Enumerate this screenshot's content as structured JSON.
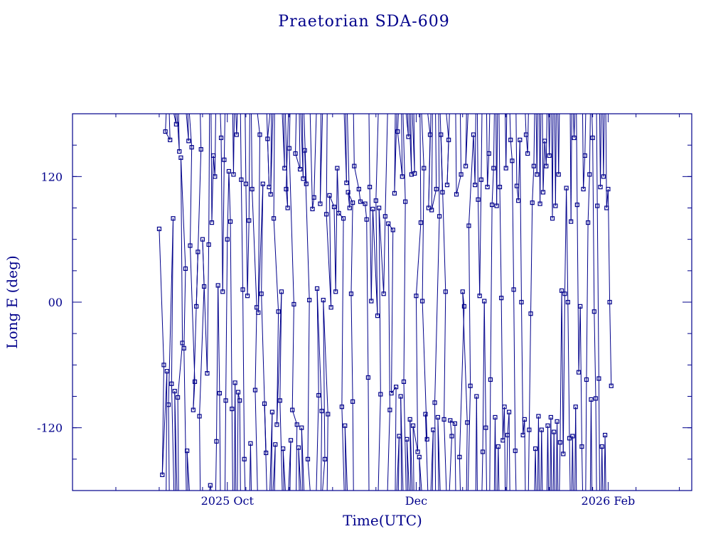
{
  "chart_data": {
    "type": "scatter",
    "title": "Praetorian SDA-609",
    "xlabel": "Time(UTC)",
    "ylabel": "Long E (deg)",
    "x_tick_labels": [
      "2025 Oct",
      "Dec",
      "2026 Feb"
    ],
    "x_ticks": [
      "2025-10-01",
      "2025-12-01",
      "2026-02-01"
    ],
    "xlim": [
      "2025-08-12",
      "2026-02-28"
    ],
    "y_tick_labels": [
      "120",
      "00",
      "-120"
    ],
    "y_ticks": [
      120,
      0,
      -120
    ],
    "ylim": [
      -180,
      180
    ],
    "grid": false,
    "line_color": "#00008b",
    "series": [
      {
        "points": [
          [
            "2025-09-09",
            70
          ],
          [
            "2025-09-10",
            -60
          ],
          [
            "2025-09-10",
            -165
          ],
          [
            "2025-09-11",
            -66
          ],
          [
            "2025-09-11",
            163
          ],
          [
            "2025-09-12",
            155
          ],
          [
            "2025-09-12",
            -98
          ],
          [
            "2025-09-13",
            80
          ],
          [
            "2025-09-13",
            -78
          ],
          [
            "2025-09-14",
            170
          ],
          [
            "2025-09-14",
            -85
          ],
          [
            "2025-09-15",
            144
          ],
          [
            "2025-09-15",
            -91
          ],
          [
            "2025-09-16",
            -39
          ],
          [
            "2025-09-16",
            138
          ],
          [
            "2025-09-17",
            32
          ],
          [
            "2025-09-17",
            -44
          ],
          [
            "2025-09-18",
            154
          ],
          [
            "2025-09-18",
            -142
          ],
          [
            "2025-09-19",
            148
          ],
          [
            "2025-09-19",
            54
          ],
          [
            "2025-09-20",
            -76
          ],
          [
            "2025-09-20",
            -103
          ],
          [
            "2025-09-21",
            48
          ],
          [
            "2025-09-21",
            -4
          ],
          [
            "2025-09-22",
            146
          ],
          [
            "2025-09-22",
            -109
          ],
          [
            "2025-09-23",
            15
          ],
          [
            "2025-09-23",
            60
          ],
          [
            "2025-09-24",
            -68
          ],
          [
            "2025-09-25",
            55
          ],
          [
            "2025-09-25",
            -175
          ],
          [
            "2025-09-26",
            76
          ],
          [
            "2025-09-26",
            140
          ],
          [
            "2025-09-27",
            120
          ],
          [
            "2025-09-27",
            -133
          ],
          [
            "2025-09-28",
            16
          ],
          [
            "2025-09-28",
            -87
          ],
          [
            "2025-09-29",
            157
          ],
          [
            "2025-09-29",
            10
          ],
          [
            "2025-09-30",
            136
          ],
          [
            "2025-09-30",
            -94
          ],
          [
            "2025-10-01",
            60
          ],
          [
            "2025-10-01",
            125
          ],
          [
            "2025-10-02",
            77
          ],
          [
            "2025-10-02",
            -102
          ],
          [
            "2025-10-03",
            122
          ],
          [
            "2025-10-03",
            -77
          ],
          [
            "2025-10-04",
            160
          ],
          [
            "2025-10-04",
            -86
          ],
          [
            "2025-10-05",
            -94
          ],
          [
            "2025-10-05",
            117
          ],
          [
            "2025-10-06",
            12
          ],
          [
            "2025-10-06",
            -150
          ],
          [
            "2025-10-07",
            113
          ],
          [
            "2025-10-07",
            6
          ],
          [
            "2025-10-08",
            78
          ],
          [
            "2025-10-08",
            -135
          ],
          [
            "2025-10-09",
            108
          ],
          [
            "2025-10-10",
            -5
          ],
          [
            "2025-10-10",
            -84
          ],
          [
            "2025-10-11",
            160
          ],
          [
            "2025-10-11",
            -10
          ],
          [
            "2025-10-12",
            113
          ],
          [
            "2025-10-12",
            8
          ],
          [
            "2025-10-13",
            -144
          ],
          [
            "2025-10-13",
            -97
          ],
          [
            "2025-10-14",
            110
          ],
          [
            "2025-10-14",
            156
          ],
          [
            "2025-10-15",
            -105
          ],
          [
            "2025-10-15",
            103
          ],
          [
            "2025-10-16",
            -136
          ],
          [
            "2025-10-16",
            80
          ],
          [
            "2025-10-17",
            -9
          ],
          [
            "2025-10-17",
            -117
          ],
          [
            "2025-10-18",
            10
          ],
          [
            "2025-10-18",
            -94
          ],
          [
            "2025-10-19",
            128
          ],
          [
            "2025-10-19",
            -140
          ],
          [
            "2025-10-20",
            90
          ],
          [
            "2025-10-20",
            108
          ],
          [
            "2025-10-21",
            -132
          ],
          [
            "2025-10-21",
            147
          ],
          [
            "2025-10-22",
            -2
          ],
          [
            "2025-10-22",
            -103
          ],
          [
            "2025-10-23",
            -117
          ],
          [
            "2025-10-23",
            142
          ],
          [
            "2025-10-24",
            127
          ],
          [
            "2025-10-24",
            -139
          ],
          [
            "2025-10-25",
            118
          ],
          [
            "2025-10-25",
            -120
          ],
          [
            "2025-10-26",
            113
          ],
          [
            "2025-10-26",
            145
          ],
          [
            "2025-10-27",
            2
          ],
          [
            "2025-10-27",
            -150
          ],
          [
            "2025-10-28",
            89
          ],
          [
            "2025-10-29",
            100
          ],
          [
            "2025-10-30",
            -89
          ],
          [
            "2025-10-30",
            13
          ],
          [
            "2025-10-31",
            -104
          ],
          [
            "2025-10-31",
            94
          ],
          [
            "2025-11-01",
            -150
          ],
          [
            "2025-11-01",
            2
          ],
          [
            "2025-11-02",
            -107
          ],
          [
            "2025-11-02",
            84
          ],
          [
            "2025-11-03",
            -5
          ],
          [
            "2025-11-03",
            102
          ],
          [
            "2025-11-04",
            91
          ],
          [
            "2025-11-05",
            10
          ],
          [
            "2025-11-05",
            128
          ],
          [
            "2025-11-06",
            85
          ],
          [
            "2025-11-07",
            80
          ],
          [
            "2025-11-07",
            -100
          ],
          [
            "2025-11-08",
            114
          ],
          [
            "2025-11-08",
            -118
          ],
          [
            "2025-11-09",
            90
          ],
          [
            "2025-11-09",
            105
          ],
          [
            "2025-11-10",
            95
          ],
          [
            "2025-11-10",
            8
          ],
          [
            "2025-11-10",
            -95
          ],
          [
            "2025-11-11",
            130
          ],
          [
            "2025-11-12",
            108
          ],
          [
            "2025-11-13",
            96
          ],
          [
            "2025-11-14",
            94
          ],
          [
            "2025-11-15",
            79
          ],
          [
            "2025-11-15",
            -72
          ],
          [
            "2025-11-16",
            110
          ],
          [
            "2025-11-16",
            1
          ],
          [
            "2025-11-17",
            89
          ],
          [
            "2025-11-18",
            -13
          ],
          [
            "2025-11-18",
            97
          ],
          [
            "2025-11-19",
            -88
          ],
          [
            "2025-11-19",
            90
          ],
          [
            "2025-11-20",
            8
          ],
          [
            "2025-11-21",
            82
          ],
          [
            "2025-11-22",
            -103
          ],
          [
            "2025-11-22",
            75
          ],
          [
            "2025-11-23",
            69
          ],
          [
            "2025-11-23",
            -87
          ],
          [
            "2025-11-24",
            -81
          ],
          [
            "2025-11-24",
            104
          ],
          [
            "2025-11-25",
            -128
          ],
          [
            "2025-11-25",
            163
          ],
          [
            "2025-11-26",
            120
          ],
          [
            "2025-11-26",
            -90
          ],
          [
            "2025-11-27",
            96
          ],
          [
            "2025-11-27",
            -76
          ],
          [
            "2025-11-28",
            158
          ],
          [
            "2025-11-28",
            -131
          ],
          [
            "2025-11-29",
            122
          ],
          [
            "2025-11-29",
            -112
          ],
          [
            "2025-11-30",
            123
          ],
          [
            "2025-11-30",
            -118
          ],
          [
            "2025-12-01",
            -143
          ],
          [
            "2025-12-01",
            6
          ],
          [
            "2025-12-02",
            76
          ],
          [
            "2025-12-02",
            -148
          ],
          [
            "2025-12-03",
            128
          ],
          [
            "2025-12-03",
            1
          ],
          [
            "2025-12-04",
            -131
          ],
          [
            "2025-12-04",
            -107
          ],
          [
            "2025-12-05",
            160
          ],
          [
            "2025-12-05",
            90
          ],
          [
            "2025-12-06",
            -122
          ],
          [
            "2025-12-06",
            88
          ],
          [
            "2025-12-07",
            108
          ],
          [
            "2025-12-07",
            -96
          ],
          [
            "2025-12-08",
            82
          ],
          [
            "2025-12-08",
            -110
          ],
          [
            "2025-12-09",
            105
          ],
          [
            "2025-12-09",
            160
          ],
          [
            "2025-12-10",
            10
          ],
          [
            "2025-12-10",
            -112
          ],
          [
            "2025-12-11",
            155
          ],
          [
            "2025-12-11",
            112
          ],
          [
            "2025-12-12",
            -128
          ],
          [
            "2025-12-12",
            -113
          ],
          [
            "2025-12-13",
            -116
          ],
          [
            "2025-12-14",
            103
          ],
          [
            "2025-12-15",
            122
          ],
          [
            "2025-12-15",
            -148
          ],
          [
            "2025-12-16",
            -4
          ],
          [
            "2025-12-16",
            10
          ],
          [
            "2025-12-17",
            -115
          ],
          [
            "2025-12-17",
            130
          ],
          [
            "2025-12-18",
            -80
          ],
          [
            "2025-12-18",
            73
          ],
          [
            "2025-12-19",
            160
          ],
          [
            "2025-12-20",
            112
          ],
          [
            "2025-12-20",
            -90
          ],
          [
            "2025-12-21",
            98
          ],
          [
            "2025-12-21",
            6
          ],
          [
            "2025-12-22",
            117
          ],
          [
            "2025-12-22",
            -143
          ],
          [
            "2025-12-23",
            1
          ],
          [
            "2025-12-23",
            -120
          ],
          [
            "2025-12-24",
            110
          ],
          [
            "2025-12-24",
            142
          ],
          [
            "2025-12-25",
            -74
          ],
          [
            "2025-12-25",
            93
          ],
          [
            "2025-12-26",
            128
          ],
          [
            "2025-12-26",
            -110
          ],
          [
            "2025-12-27",
            92
          ],
          [
            "2025-12-27",
            -138
          ],
          [
            "2025-12-28",
            110
          ],
          [
            "2025-12-28",
            4
          ],
          [
            "2025-12-29",
            -132
          ],
          [
            "2025-12-29",
            -100
          ],
          [
            "2025-12-30",
            128
          ],
          [
            "2025-12-30",
            -127
          ],
          [
            "2025-12-31",
            -105
          ],
          [
            "2025-12-31",
            155
          ],
          [
            "2026-01-01",
            135
          ],
          [
            "2026-01-01",
            12
          ],
          [
            "2026-01-02",
            -142
          ],
          [
            "2026-01-02",
            111
          ],
          [
            "2026-01-03",
            97
          ],
          [
            "2026-01-03",
            155
          ],
          [
            "2026-01-04",
            0
          ],
          [
            "2026-01-04",
            -127
          ],
          [
            "2026-01-05",
            -112
          ],
          [
            "2026-01-05",
            160
          ],
          [
            "2026-01-06",
            142
          ],
          [
            "2026-01-06",
            -122
          ],
          [
            "2026-01-07",
            -11
          ],
          [
            "2026-01-07",
            95
          ],
          [
            "2026-01-08",
            130
          ],
          [
            "2026-01-08",
            -140
          ],
          [
            "2026-01-09",
            122
          ],
          [
            "2026-01-09",
            -109
          ],
          [
            "2026-01-10",
            94
          ],
          [
            "2026-01-10",
            -122
          ],
          [
            "2026-01-11",
            105
          ],
          [
            "2026-01-11",
            154
          ],
          [
            "2026-01-12",
            130
          ],
          [
            "2026-01-12",
            -118
          ],
          [
            "2026-01-13",
            140
          ],
          [
            "2026-01-13",
            -110
          ],
          [
            "2026-01-14",
            80
          ],
          [
            "2026-01-14",
            -124
          ],
          [
            "2026-01-15",
            92
          ],
          [
            "2026-01-15",
            -114
          ],
          [
            "2026-01-16",
            122
          ],
          [
            "2026-01-16",
            -134
          ],
          [
            "2026-01-17",
            11
          ],
          [
            "2026-01-17",
            -145
          ],
          [
            "2026-01-18",
            8
          ],
          [
            "2026-01-18",
            109
          ],
          [
            "2026-01-19",
            0
          ],
          [
            "2026-01-19",
            -130
          ],
          [
            "2026-01-20",
            77
          ],
          [
            "2026-01-20",
            -128
          ],
          [
            "2026-01-21",
            157
          ],
          [
            "2026-01-21",
            -100
          ],
          [
            "2026-01-22",
            93
          ],
          [
            "2026-01-22",
            -67
          ],
          [
            "2026-01-23",
            -4
          ],
          [
            "2026-01-23",
            -138
          ],
          [
            "2026-01-24",
            108
          ],
          [
            "2026-01-24",
            140
          ],
          [
            "2026-01-25",
            -74
          ],
          [
            "2026-01-25",
            76
          ],
          [
            "2026-01-26",
            122
          ],
          [
            "2026-01-26",
            -93
          ],
          [
            "2026-01-27",
            157
          ],
          [
            "2026-01-27",
            -9
          ],
          [
            "2026-01-28",
            -92
          ],
          [
            "2026-01-28",
            92
          ],
          [
            "2026-01-29",
            -73
          ],
          [
            "2026-01-29",
            110
          ],
          [
            "2026-01-30",
            -138
          ],
          [
            "2026-01-30",
            120
          ],
          [
            "2026-01-31",
            -127
          ],
          [
            "2026-01-31",
            90
          ],
          [
            "2026-02-01",
            108
          ],
          [
            "2026-02-01",
            0
          ],
          [
            "2026-02-02",
            -80
          ]
        ]
      }
    ]
  }
}
